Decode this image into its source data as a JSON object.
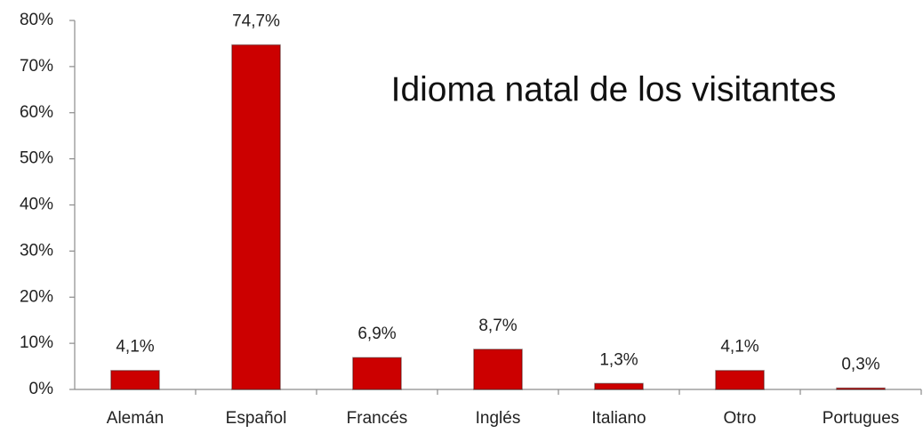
{
  "chart_data": {
    "type": "bar",
    "title": "Idioma natal de los visitantes",
    "categories": [
      "Alemán",
      "Español",
      "Francés",
      "Inglés",
      "Italiano",
      "Otro",
      "Portugues"
    ],
    "values": [
      4.1,
      74.7,
      6.9,
      8.7,
      1.3,
      4.1,
      0.3
    ],
    "value_labels": [
      "4,1%",
      "74,7%",
      "6,9%",
      "8,7%",
      "1,3%",
      "4,1%",
      "0,3%"
    ],
    "color": "#cc0000",
    "ylim": [
      0,
      80
    ],
    "yticks": [
      {
        "value": 0,
        "label": "0%"
      },
      {
        "value": 10,
        "label": "10%"
      },
      {
        "value": 20,
        "label": "20%"
      },
      {
        "value": 30,
        "label": "30%"
      },
      {
        "value": 40,
        "label": "40%"
      },
      {
        "value": 50,
        "label": "50%"
      },
      {
        "value": 60,
        "label": "60%"
      },
      {
        "value": 70,
        "label": "70%"
      },
      {
        "value": 80,
        "label": "80%"
      }
    ],
    "grid": false
  }
}
